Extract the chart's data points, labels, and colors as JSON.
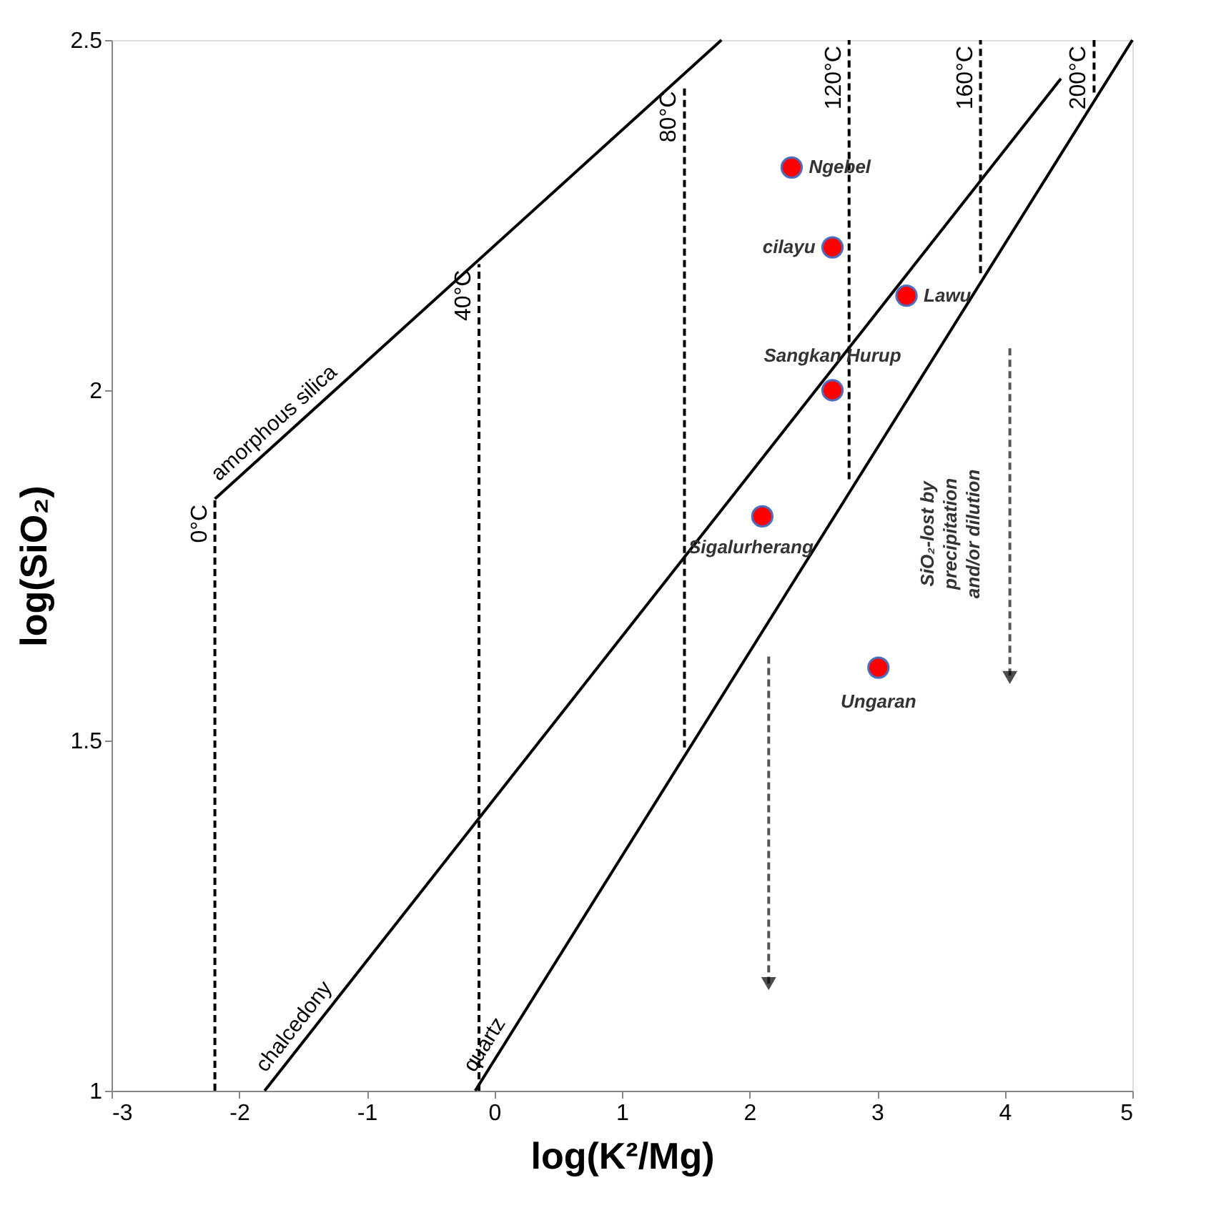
{
  "chart_data": {
    "type": "scatter",
    "xlabel": "log(K²/Mg)",
    "ylabel": "log(SiO₂)",
    "xlim": [
      -3,
      5
    ],
    "ylim": [
      1,
      2.5
    ],
    "xticks": [
      -3,
      -2,
      -1,
      0,
      1,
      2,
      3,
      4,
      5
    ],
    "yticks": [
      1,
      1.5,
      2,
      2.5
    ],
    "grid": false,
    "series": [
      {
        "name": "amorphous silica",
        "type": "line",
        "line_style": "solid",
        "color": "#000000",
        "x": [
          -2.19,
          1.78
        ],
        "values": [
          1.845,
          2.5
        ]
      },
      {
        "name": "chalcedony",
        "type": "line",
        "line_style": "solid",
        "color": "#000000",
        "x": [
          -1.8,
          4.44
        ],
        "values": [
          1.0,
          2.445
        ]
      },
      {
        "name": "quartz",
        "type": "line",
        "line_style": "solid",
        "color": "#000000",
        "x": [
          -0.15,
          5
        ],
        "values": [
          1.0,
          2.5
        ]
      },
      {
        "name": "0°C",
        "type": "line",
        "line_style": "dashed",
        "color": "#000000",
        "x": [
          -2.19,
          -2.19
        ],
        "values": [
          1.0,
          1.845
        ]
      },
      {
        "name": "40°C",
        "type": "line",
        "line_style": "dashed",
        "color": "#000000",
        "x": [
          -0.12,
          -0.12
        ],
        "values": [
          1.0,
          2.18
        ]
      },
      {
        "name": "80°C",
        "type": "line",
        "line_style": "dashed",
        "color": "#000000",
        "x": [
          1.49,
          1.49
        ],
        "values": [
          1.49,
          2.435
        ]
      },
      {
        "name": "120°C",
        "type": "line",
        "line_style": "dashed",
        "color": "#000000",
        "x": [
          2.78,
          2.78
        ],
        "values": [
          1.873,
          2.5
        ]
      },
      {
        "name": "160°C",
        "type": "line",
        "line_style": "dashed",
        "color": "#000000",
        "x": [
          3.81,
          3.81
        ],
        "values": [
          2.167,
          2.5
        ]
      },
      {
        "name": "200°C",
        "type": "line",
        "line_style": "dashed",
        "color": "#000000",
        "x": [
          4.7,
          4.7
        ],
        "values": [
          2.425,
          2.5
        ]
      },
      {
        "type": "line",
        "line_style": "dashed",
        "marker": "triangle",
        "color": "#555555",
        "x": [
          2.15,
          2.15
        ],
        "values": [
          1.62,
          1.153
        ]
      },
      {
        "type": "line",
        "line_style": "dashed",
        "marker": "triangle",
        "color": "#555555",
        "x": [
          4.04,
          4.04
        ],
        "values": [
          2.06,
          1.59
        ]
      },
      {
        "marker": "circle",
        "color": "#ff0000",
        "x": [
          2.33,
          2.65,
          3.23,
          2.65,
          2.1,
          3.01
        ],
        "values": [
          2.318,
          2.204,
          2.135,
          2.0,
          1.82,
          1.604
        ]
      }
    ],
    "annotations": [
      {
        "text": "Ngebel",
        "x": 2.33,
        "y": 2.318
      },
      {
        "text": "cilayu",
        "x": 2.65,
        "y": 2.204
      },
      {
        "text": "Lawu",
        "x": 3.23,
        "y": 2.135
      },
      {
        "text": "Sangkan Hurup",
        "x": 2.65,
        "y": 2.0
      },
      {
        "text": "Sigalurherang",
        "x": 2.1,
        "y": 1.82
      },
      {
        "text": "Ungaran",
        "x": 3.01,
        "y": 1.604
      },
      "SiO₂-lost by\nprecipitation\nand/or dilution"
    ]
  }
}
